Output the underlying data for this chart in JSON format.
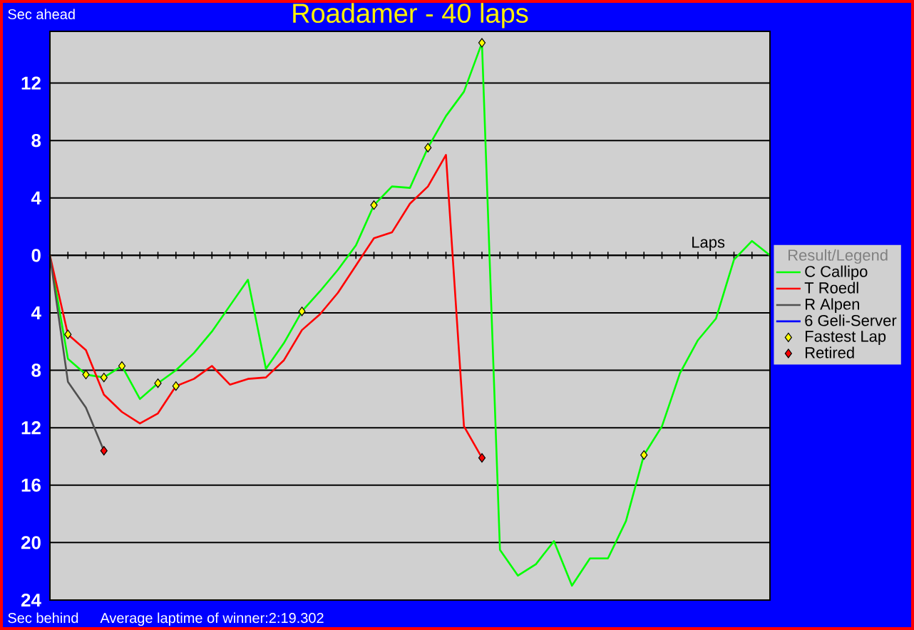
{
  "chart_data": {
    "type": "line",
    "title": "Roadamer - 40 laps",
    "ylabel": "Sec ahead",
    "xlabel": "Laps",
    "legend_title": "Result/Legend",
    "annotations": [
      "Sec behind",
      "Average laptime of winner:2:19.302"
    ],
    "categories": [
      null,
      null,
      null,
      null,
      null,
      null,
      null,
      null,
      null,
      null,
      null,
      null,
      null,
      null,
      null,
      null,
      null,
      null,
      null,
      null,
      null,
      null,
      null,
      null,
      null,
      null,
      null,
      null,
      null,
      null,
      null,
      null,
      null,
      null,
      null,
      null,
      null,
      null,
      null,
      null,
      null
    ],
    "ylim": [
      -24,
      15.6
    ],
    "yticks": [
      {
        "value": 12,
        "label": "12"
      },
      {
        "value": 8,
        "label": "8"
      },
      {
        "value": 4,
        "label": "4"
      },
      {
        "value": 0,
        "label": "0"
      },
      {
        "value": -4,
        "label": "4"
      },
      {
        "value": -8,
        "label": "8"
      },
      {
        "value": -12,
        "label": "12"
      },
      {
        "value": -16,
        "label": "16"
      },
      {
        "value": -20,
        "label": "20"
      },
      {
        "value": -24,
        "label": "24"
      }
    ],
    "tick_labels": "y",
    "grid": "y",
    "legend": "right",
    "series": [
      {
        "name": "C Callipo",
        "color": "#00ff00",
        "values": [
          0,
          -7.2,
          -8.3,
          -8.5,
          -7.7,
          -10.0,
          -8.9,
          -8.0,
          -6.8,
          -5.3,
          -3.5,
          -1.7,
          -7.9,
          -6.1,
          -3.9,
          -2.5,
          -1.0,
          0.7,
          3.5,
          4.8,
          4.7,
          7.5,
          9.7,
          11.4,
          14.8,
          -20.5,
          -22.3,
          -21.5,
          -19.9,
          -23.0,
          -21.1,
          -21.1,
          -18.5,
          -13.9,
          -11.9,
          -8.2,
          -5.9,
          -4.4,
          -0.3,
          1.0,
          0
        ]
      },
      {
        "name": "T Roedl",
        "color": "#ff0000",
        "values": [
          0,
          -5.5,
          -6.6,
          -9.7,
          -10.9,
          -11.7,
          -11.0,
          -9.1,
          -8.6,
          -7.7,
          -9.0,
          -8.6,
          -8.5,
          -7.3,
          -5.2,
          -4.1,
          -2.6,
          -0.7,
          1.2,
          1.6,
          3.6,
          4.8,
          7.0,
          -11.9,
          -14.1,
          null,
          null,
          null,
          null,
          null,
          null,
          null,
          null,
          null,
          null,
          null,
          null,
          null,
          null,
          null,
          null
        ]
      },
      {
        "name": "R Alpen",
        "color": "#505050",
        "values": [
          0,
          -8.8,
          -10.6,
          -13.6,
          null,
          null,
          null,
          null,
          null,
          null,
          null,
          null,
          null,
          null,
          null,
          null,
          null,
          null,
          null,
          null,
          null,
          null,
          null,
          null,
          null,
          null,
          null,
          null,
          null,
          null,
          null,
          null,
          null,
          null,
          null,
          null,
          null,
          null,
          null,
          null,
          null
        ]
      },
      {
        "name": "6 Geli-Server",
        "color": "#0000ff",
        "values": [
          null,
          null,
          null,
          null,
          null,
          null,
          null,
          null,
          null,
          null,
          null,
          null,
          null,
          null,
          null,
          null,
          null,
          null,
          null,
          null,
          null,
          null,
          null,
          null,
          null,
          null,
          null,
          null,
          null,
          null,
          null,
          null,
          null,
          null,
          null,
          null,
          null,
          null,
          null,
          null,
          null
        ]
      },
      {
        "name": "Fastest Lap",
        "type": "scatter",
        "marker": "diamond",
        "color": "#ffff00",
        "values": [
          null,
          -5.5,
          -8.3,
          -8.5,
          -7.7,
          null,
          -8.9,
          -9.1,
          null,
          null,
          null,
          null,
          null,
          null,
          -3.9,
          null,
          null,
          null,
          3.5,
          null,
          null,
          7.5,
          null,
          null,
          14.8,
          null,
          null,
          null,
          null,
          null,
          null,
          null,
          null,
          -13.9,
          null,
          null,
          null,
          null,
          null,
          null,
          null
        ]
      },
      {
        "name": "Retired",
        "type": "scatter",
        "marker": "diamond",
        "color": "#ff0000",
        "values": [
          null,
          null,
          null,
          -13.6,
          null,
          null,
          null,
          null,
          null,
          null,
          null,
          null,
          null,
          null,
          null,
          null,
          null,
          null,
          null,
          null,
          null,
          null,
          null,
          null,
          -14.1,
          null,
          null,
          null,
          null,
          null,
          null,
          null,
          null,
          null,
          null,
          null,
          null,
          null,
          null,
          null,
          null
        ]
      }
    ]
  }
}
